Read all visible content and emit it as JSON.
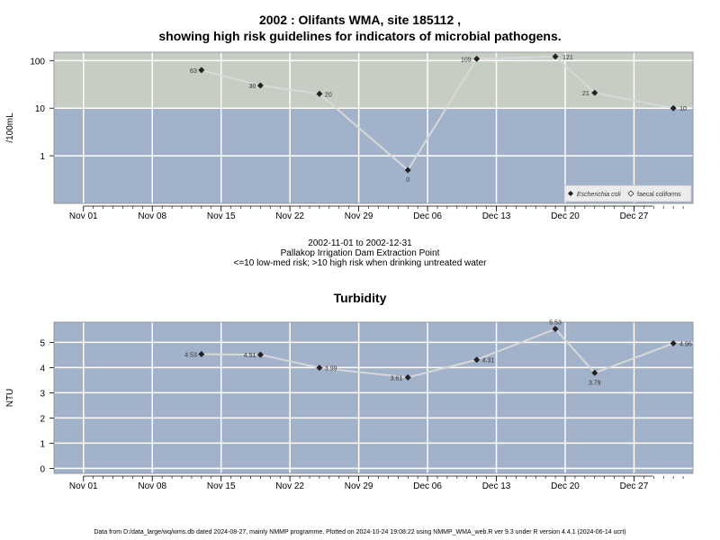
{
  "header": {
    "title_line1": "2002 : Olifants WMA, site 185112 ,",
    "title_line2": "showing high risk guidelines for indicators of microbial pathogens."
  },
  "subtitle": {
    "line1": "2002-11-01 to 2002-12-31",
    "line2": "Pallakop Irrigation Dam Extraction Point",
    "line3": "<=10 low-med risk; >10 high risk when drinking untreated water"
  },
  "footer": "Data from D:/data_large/wq/wms.db dated 2024-08-27, mainly NMMP programme. Plotted on 2024-10-24 19:08:22 using NMMP_WMA_web.R ver 9.3 under R version 4.4.1 (2024-06-14 ucrt)",
  "colors": {
    "panel_high": "#c6cec3",
    "panel_low": "#a2b2cb",
    "grid": "#ffffff",
    "line": "#d8d8d8",
    "point": "#222222"
  },
  "chart_data": [
    {
      "type": "line",
      "title": "",
      "ylabel": "/100mL",
      "yscale": "log",
      "ylim": [
        0.1,
        150
      ],
      "y_ticks": [
        1,
        10,
        100
      ],
      "y_tick_labels": [
        "1",
        "10",
        "100"
      ],
      "threshold": 10,
      "grid": true,
      "x_tick_labels": [
        "Nov 01",
        "Nov 08",
        "Nov 15",
        "Nov 22",
        "Nov 29",
        "Dec 06",
        "Dec 13",
        "Dec 20",
        "Dec 27"
      ],
      "x_tick_dates": [
        "2002-11-01",
        "2002-11-08",
        "2002-11-15",
        "2002-11-22",
        "2002-11-29",
        "2002-12-06",
        "2002-12-13",
        "2002-12-20",
        "2002-12-27"
      ],
      "xlim": [
        "2002-10-29",
        "2003-01-02"
      ],
      "legend": {
        "position": "bottom-right",
        "entries": [
          {
            "label": "Escherichia coli",
            "marker": "filled-diamond",
            "italic": true
          },
          {
            "label": "faecal coliforms",
            "marker": "open-diamond",
            "italic": false
          }
        ]
      },
      "series": [
        {
          "name": "Escherichia coli",
          "dates": [
            "2002-11-13",
            "2002-11-19",
            "2002-11-25",
            "2002-12-04",
            "2002-12-11",
            "2002-12-19",
            "2002-12-23",
            "2002-12-31"
          ],
          "values": [
            63,
            30,
            20,
            0.5,
            109,
            121,
            21,
            10
          ],
          "labels": [
            "63",
            "30",
            "20",
            "0",
            "109",
            "121",
            "21",
            "10"
          ]
        }
      ]
    },
    {
      "type": "line",
      "title": "Turbidity",
      "ylabel": "NTU",
      "ylim": [
        -0.2,
        5.8
      ],
      "y_ticks": [
        0,
        1,
        2,
        3,
        4,
        5
      ],
      "y_tick_labels": [
        "0",
        "1",
        "2",
        "3",
        "4",
        "5"
      ],
      "grid": true,
      "x_tick_labels": [
        "Nov 01",
        "Nov 08",
        "Nov 15",
        "Nov 22",
        "Nov 29",
        "Dec 06",
        "Dec 13",
        "Dec 20",
        "Dec 27"
      ],
      "x_tick_dates": [
        "2002-11-01",
        "2002-11-08",
        "2002-11-15",
        "2002-11-22",
        "2002-11-29",
        "2002-12-06",
        "2002-12-13",
        "2002-12-20",
        "2002-12-27"
      ],
      "xlim": [
        "2002-10-29",
        "2003-01-02"
      ],
      "series": [
        {
          "dates": [
            "2002-11-13",
            "2002-11-19",
            "2002-11-25",
            "2002-12-04",
            "2002-12-11",
            "2002-12-19",
            "2002-12-23",
            "2002-12-31"
          ],
          "values": [
            4.53,
            4.51,
            3.99,
            3.61,
            4.31,
            5.53,
            3.79,
            4.96
          ],
          "labels": [
            "4.53",
            "4.51",
            "3.99",
            "3.61",
            "4.31",
            "5.53",
            "3.79",
            "4.96"
          ]
        }
      ]
    }
  ]
}
